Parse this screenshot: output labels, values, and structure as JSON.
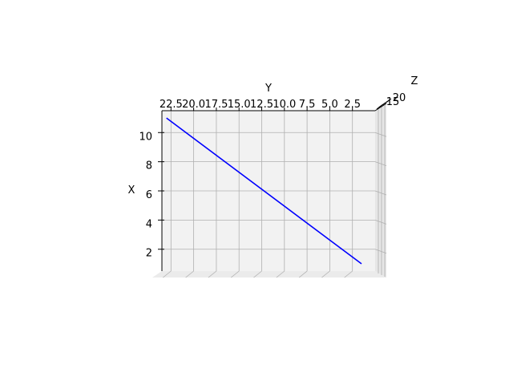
{
  "chart_data": {
    "type": "line",
    "title": "",
    "view": "3d",
    "xlabel": "X",
    "ylabel": "Y",
    "zlabel": "Z",
    "x_ticks": [
      "2",
      "4",
      "6",
      "8",
      "10"
    ],
    "y_ticks": [
      "22.5",
      "20.0",
      "17.5",
      "15.0",
      "12.5",
      "10.0",
      "7.5",
      "5.0",
      "2.5"
    ],
    "z_ticks_visible": [
      "20",
      "15"
    ],
    "xlim": [
      0.5,
      11.5
    ],
    "ylim": [
      0,
      23.5
    ],
    "grid": true,
    "series": [
      {
        "color": "#0000ff",
        "points": [
          {
            "x": 1,
            "y": 1.5
          },
          {
            "x": 11,
            "y": 23
          }
        ]
      }
    ]
  }
}
